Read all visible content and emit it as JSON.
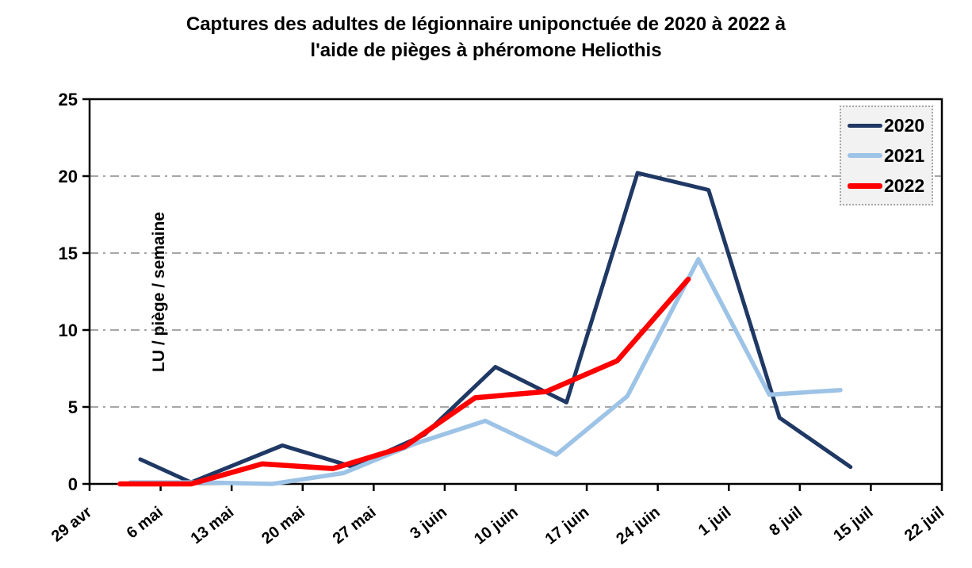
{
  "chart_data": {
    "type": "line",
    "title": "Captures des adultes de légionnaire uniponctuée de 2020 à 2022 à l'aide de pièges à phéromone Heliothis",
    "title_lines": [
      "Captures des adultes de légionnaire uniponctuée de 2020 à 2022 à",
      "l'aide de pièges à phéromone Heliothis"
    ],
    "ylabel": "LU / piège / semaine",
    "xlabel": "",
    "ylim": [
      0,
      25
    ],
    "y_ticks": [
      0,
      5,
      10,
      15,
      20,
      25
    ],
    "gridlines_at": [
      5,
      10,
      15,
      20
    ],
    "grid_style": "dash-dot",
    "gridline_color": "#A6A6A6",
    "axis_color": "#000000",
    "x_unit": "days since 29 avr (weekly ticks)",
    "x_range_days": [
      0,
      84
    ],
    "x_tick_days": [
      0,
      7,
      14,
      21,
      28,
      35,
      42,
      49,
      56,
      63,
      70,
      77,
      84
    ],
    "x_tick_labels": [
      "29 avr",
      "6 mai",
      "13 mai",
      "20 mai",
      "27 mai",
      "3 juin",
      "10 juin",
      "17 juin",
      "24 juin",
      "1 juil",
      "8 juil",
      "15 juil",
      "22 juil"
    ],
    "legend_position": "top-right",
    "series": [
      {
        "name": "2020",
        "color": "#1F3864",
        "line_width": 5,
        "days": [
          5,
          10,
          19,
          26,
          33,
          40,
          47,
          54,
          61,
          68,
          75
        ],
        "values": [
          1.6,
          0.1,
          2.5,
          1.1,
          3.2,
          7.6,
          5.3,
          20.2,
          19.1,
          4.3,
          1.1
        ]
      },
      {
        "name": "2021",
        "color": "#9DC3E6",
        "line_width": 5.5,
        "days": [
          4,
          11,
          18,
          25,
          32,
          39,
          46,
          53,
          60,
          67,
          74
        ],
        "values": [
          0.1,
          0.1,
          0.0,
          0.7,
          2.6,
          4.1,
          1.9,
          5.7,
          14.6,
          5.8,
          6.1
        ]
      },
      {
        "name": "2022",
        "color": "#FF0000",
        "line_width": 6.5,
        "days": [
          3,
          10,
          17,
          24,
          31,
          38,
          45,
          52,
          59
        ],
        "values": [
          0.0,
          0.0,
          1.3,
          1.0,
          2.4,
          5.6,
          6.0,
          8.0,
          13.3
        ]
      }
    ]
  }
}
